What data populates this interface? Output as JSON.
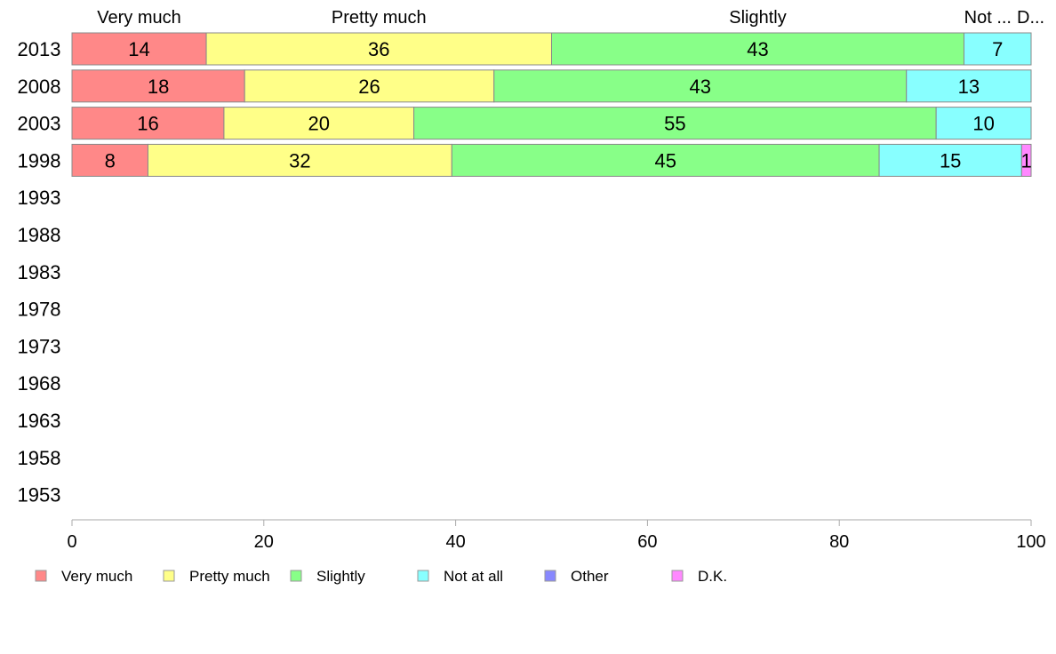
{
  "chart_data": {
    "type": "bar",
    "orientation": "horizontal-stacked",
    "categories": [
      "2013",
      "2008",
      "2003",
      "1998",
      "1993",
      "1988",
      "1983",
      "1978",
      "1973",
      "1968",
      "1963",
      "1958",
      "1953"
    ],
    "series": [
      {
        "name": "Very much",
        "color": "#ff8888",
        "values": [
          14,
          18,
          16,
          8,
          null,
          null,
          null,
          null,
          null,
          null,
          null,
          null,
          null
        ]
      },
      {
        "name": "Pretty much",
        "color": "#ffff88",
        "values": [
          36,
          26,
          20,
          32,
          null,
          null,
          null,
          null,
          null,
          null,
          null,
          null,
          null
        ]
      },
      {
        "name": "Slightly",
        "color": "#88ff88",
        "values": [
          43,
          43,
          55,
          45,
          null,
          null,
          null,
          null,
          null,
          null,
          null,
          null,
          null
        ]
      },
      {
        "name": "Not at all",
        "color": "#88ffff",
        "values": [
          7,
          13,
          10,
          15,
          null,
          null,
          null,
          null,
          null,
          null,
          null,
          null,
          null
        ]
      },
      {
        "name": "Other",
        "color": "#8888ff",
        "values": [
          null,
          null,
          null,
          null,
          null,
          null,
          null,
          null,
          null,
          null,
          null,
          null,
          null
        ]
      },
      {
        "name": "D.K.",
        "color": "#ff88ff",
        "values": [
          null,
          null,
          null,
          1,
          null,
          null,
          null,
          null,
          null,
          null,
          null,
          null,
          null
        ]
      }
    ],
    "top_labels": [
      "Very much",
      "Pretty much",
      "Slightly",
      "Not ...",
      "D..."
    ],
    "xlim": [
      0,
      100
    ],
    "xticks": [
      "0",
      "20",
      "40",
      "60",
      "80",
      "100"
    ],
    "legend": "bottom"
  }
}
